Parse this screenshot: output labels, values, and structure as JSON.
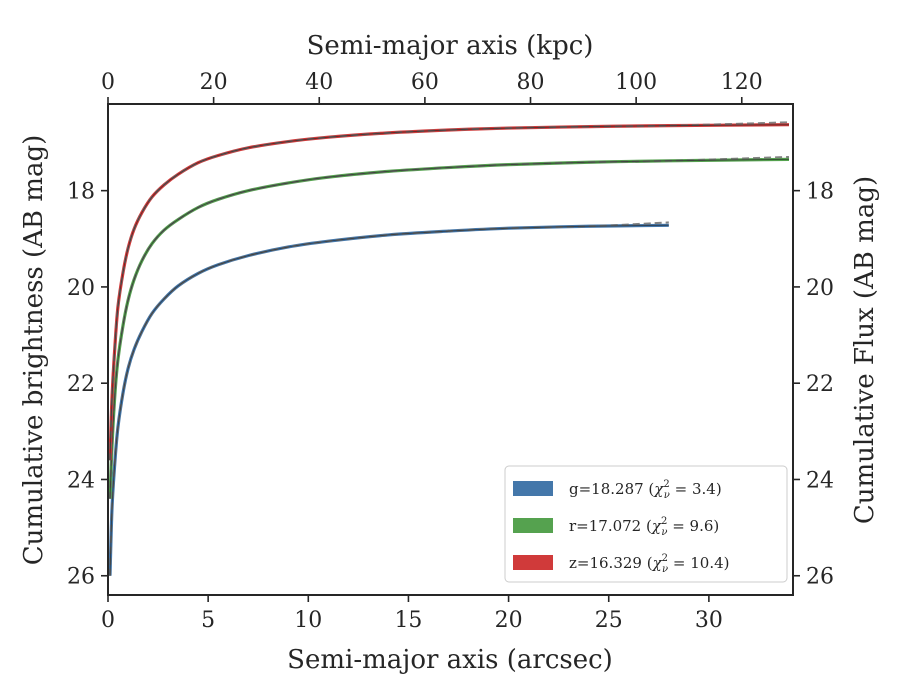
{
  "chart_data": {
    "type": "line",
    "xlabel": "Semi-major axis (arcsec)",
    "ylabel": "Cumulative brightness (AB mag)",
    "x2label": "Semi-major axis (kpc)",
    "y2label": "Cumulative Flux (AB mag)",
    "xlim": [
      0,
      34.2
    ],
    "ylim_inverted": [
      16.2,
      26.4
    ],
    "x2lim": [
      0,
      129.7
    ],
    "xticks": [
      0,
      5,
      10,
      15,
      20,
      25,
      30
    ],
    "yticks": [
      18,
      20,
      22,
      24,
      26
    ],
    "x2ticks": [
      0,
      20,
      40,
      60,
      80,
      100,
      120
    ],
    "legend_position": "lower-right",
    "series": [
      {
        "band": "g",
        "legend": "g=18.287 (",
        "chi_value": "3.4",
        "color": "#4477aa",
        "x": [
          0.1,
          0.2,
          0.35,
          0.5,
          0.75,
          1.0,
          1.3,
          1.7,
          2.2,
          2.8,
          3.5,
          4.5,
          5.5,
          7.0,
          9.0,
          11.0,
          14.0,
          17.0,
          20.0,
          24.0,
          28.0
        ],
        "y": [
          26.0,
          24.6,
          23.6,
          22.9,
          22.2,
          21.7,
          21.3,
          20.92,
          20.55,
          20.25,
          19.98,
          19.72,
          19.54,
          19.35,
          19.17,
          19.05,
          18.92,
          18.84,
          18.78,
          18.74,
          18.72
        ],
        "model_end": {
          "x": 28.0,
          "y": 18.66
        }
      },
      {
        "band": "r",
        "legend": "r=17.072 (",
        "chi_value": "9.6",
        "color": "#55a24f",
        "x": [
          0.1,
          0.2,
          0.35,
          0.5,
          0.75,
          1.0,
          1.3,
          1.7,
          2.2,
          2.8,
          3.5,
          4.5,
          5.5,
          7.0,
          9.0,
          11.0,
          14.0,
          17.0,
          20.0,
          24.0,
          28.0,
          34.0
        ],
        "y": [
          24.4,
          23.3,
          22.2,
          21.5,
          20.8,
          20.28,
          19.85,
          19.45,
          19.1,
          18.82,
          18.6,
          18.35,
          18.18,
          18.0,
          17.84,
          17.72,
          17.6,
          17.52,
          17.46,
          17.41,
          17.38,
          17.35
        ],
        "model_end": {
          "x": 34.0,
          "y": 17.3
        }
      },
      {
        "band": "z",
        "legend": "z=16.329 (",
        "chi_value": "10.4",
        "color": "#d03a3a",
        "x": [
          0.1,
          0.2,
          0.35,
          0.5,
          0.75,
          1.0,
          1.3,
          1.7,
          2.2,
          2.8,
          3.5,
          4.5,
          5.5,
          7.0,
          9.0,
          11.0,
          14.0,
          17.0,
          20.0,
          24.0,
          28.0,
          34.0
        ],
        "y": [
          23.6,
          22.3,
          21.2,
          20.4,
          19.7,
          19.2,
          18.8,
          18.45,
          18.13,
          17.88,
          17.66,
          17.42,
          17.27,
          17.11,
          16.98,
          16.89,
          16.8,
          16.74,
          16.7,
          16.67,
          16.65,
          16.63
        ],
        "model_end": {
          "x": 34.0,
          "y": 16.58
        }
      }
    ]
  }
}
